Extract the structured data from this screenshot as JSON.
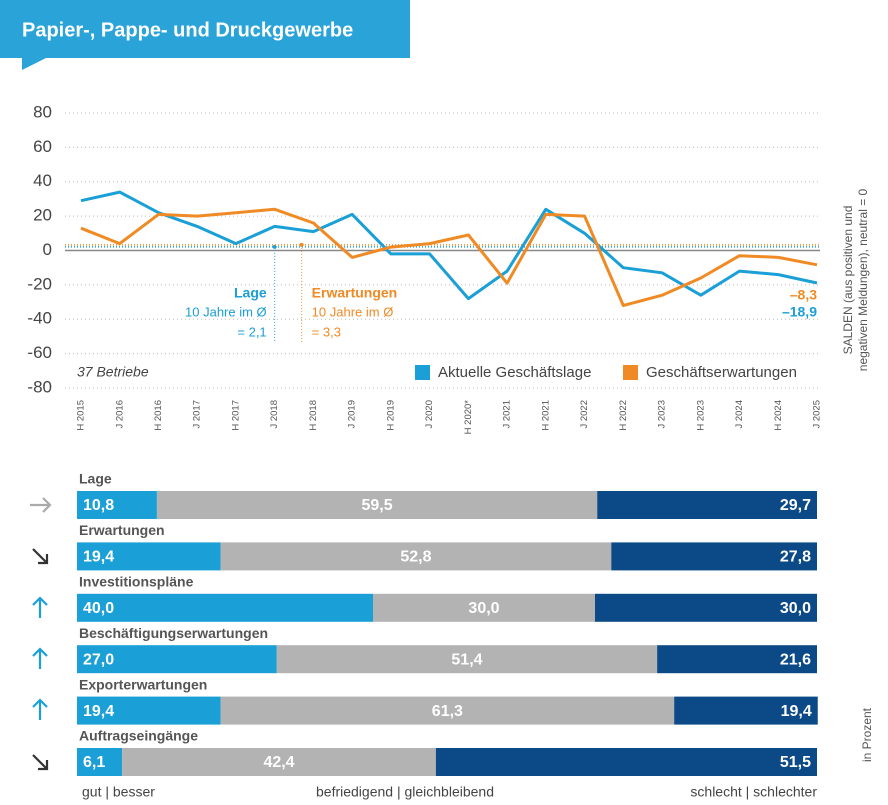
{
  "header": {
    "title": "Papier-, Pappe- und Druckgewerbe"
  },
  "chart_data": [
    {
      "type": "line",
      "categories": [
        "H 2015",
        "J 2016",
        "H 2016",
        "J 2017",
        "H 2017",
        "J 2018",
        "H 2018",
        "J 2019",
        "H 2019",
        "J 2020",
        "H 2020*",
        "J 2021",
        "H 2021",
        "J 2022",
        "H 2022",
        "J 2023",
        "H 2023",
        "J 2024",
        "H 2024",
        "J 2025"
      ],
      "series": [
        {
          "name": "Aktuelle Geschäftslage",
          "color": "#1a9fd6",
          "values": [
            29,
            34,
            22,
            14,
            4,
            14,
            11,
            21,
            -2,
            -2,
            -28,
            -12,
            24,
            10,
            -10,
            -13,
            -26,
            -12,
            -14,
            -18.9
          ],
          "value_labels": [
            null,
            null,
            null,
            null,
            null,
            null,
            null,
            null,
            null,
            null,
            null,
            null,
            null,
            null,
            null,
            null,
            null,
            null,
            null,
            "–18,9"
          ]
        },
        {
          "name": "Geschäftserwartungen",
          "color": "#f08a24",
          "values": [
            13,
            4,
            21,
            20,
            22,
            24,
            16,
            -4,
            2,
            4,
            9,
            -19,
            21,
            20,
            -32,
            -26,
            -16,
            -3,
            -4,
            -8.3
          ],
          "value_labels": [
            null,
            null,
            null,
            null,
            null,
            null,
            null,
            null,
            null,
            null,
            null,
            null,
            null,
            null,
            null,
            null,
            null,
            null,
            null,
            "–8,3"
          ]
        }
      ],
      "ylim": [
        -80,
        80
      ],
      "yticks": [
        -80,
        -60,
        -40,
        -20,
        0,
        20,
        40,
        60,
        80
      ],
      "grid": true,
      "ylabel": [
        "SALDEN (aus positiven und",
        "negativen Meldungen), neutral = 0"
      ],
      "reference_lines": [
        {
          "name": "Lage",
          "text": "10 Jahre im Ø",
          "value": 2.1,
          "label": "= 2,1",
          "color": "#1a9fd6"
        },
        {
          "name": "Erwartungen",
          "text": "10 Jahre im Ø",
          "value": 3.3,
          "label": "= 3,3",
          "color": "#f08a24"
        }
      ],
      "annotation": "37 Betriebe",
      "legend": "bottom-right"
    },
    {
      "type": "stacked-bar-horizontal",
      "categories": [
        "Lage",
        "Erwartungen",
        "Investitionspläne",
        "Beschäftigungserwartungen",
        "Exporterwartungen",
        "Auftragseingänge"
      ],
      "series": [
        {
          "name": "gut | besser",
          "color": "#1a9fd6",
          "values": [
            10.8,
            19.4,
            40.0,
            27.0,
            19.4,
            6.1
          ],
          "value_labels": [
            "10,8",
            "19,4",
            "40,0",
            "27,0",
            "19,4",
            "6,1"
          ]
        },
        {
          "name": "befriedigend | gleichbleibend",
          "color": "#b3b3b3",
          "values": [
            59.5,
            52.8,
            30.0,
            51.4,
            61.3,
            42.4
          ],
          "value_labels": [
            "59,5",
            "52,8",
            "30,0",
            "51,4",
            "61,3",
            "42,4"
          ]
        },
        {
          "name": "schlecht | schlechter",
          "color": "#0b4a86",
          "values": [
            29.7,
            27.8,
            30.0,
            21.6,
            19.4,
            51.5
          ],
          "value_labels": [
            "29,7",
            "27,8",
            "30,0",
            "21,6",
            "19,4",
            "51,5"
          ]
        }
      ],
      "xlim": [
        0,
        100
      ],
      "unit": "in Prozent"
    }
  ]
}
